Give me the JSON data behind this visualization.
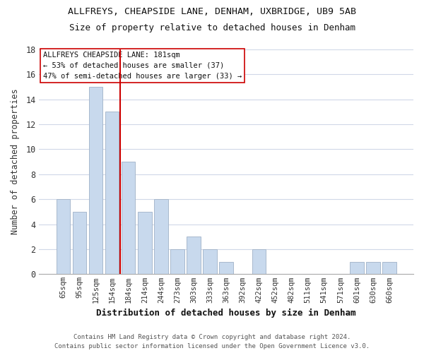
{
  "title": "ALLFREYS, CHEAPSIDE LANE, DENHAM, UXBRIDGE, UB9 5AB",
  "subtitle": "Size of property relative to detached houses in Denham",
  "xlabel": "Distribution of detached houses by size in Denham",
  "ylabel": "Number of detached properties",
  "bar_color": "#c8d9ed",
  "bar_edge_color": "#a8b9cd",
  "categories": [
    "65sqm",
    "95sqm",
    "125sqm",
    "154sqm",
    "184sqm",
    "214sqm",
    "244sqm",
    "273sqm",
    "303sqm",
    "333sqm",
    "363sqm",
    "392sqm",
    "422sqm",
    "452sqm",
    "482sqm",
    "511sqm",
    "541sqm",
    "571sqm",
    "601sqm",
    "630sqm",
    "660sqm"
  ],
  "values": [
    6,
    5,
    15,
    13,
    9,
    5,
    6,
    2,
    3,
    2,
    1,
    0,
    2,
    0,
    0,
    0,
    0,
    0,
    1,
    1,
    1
  ],
  "vline_color": "#cc0000",
  "annotation_title": "ALLFREYS CHEAPSIDE LANE: 181sqm",
  "annotation_line1": "← 53% of detached houses are smaller (37)",
  "annotation_line2": "47% of semi-detached houses are larger (33) →",
  "ylim": [
    0,
    18
  ],
  "yticks": [
    0,
    2,
    4,
    6,
    8,
    10,
    12,
    14,
    16,
    18
  ],
  "footer1": "Contains HM Land Registry data © Crown copyright and database right 2024.",
  "footer2": "Contains public sector information licensed under the Open Government Licence v3.0.",
  "background_color": "#ffffff",
  "grid_color": "#d0d8e8"
}
